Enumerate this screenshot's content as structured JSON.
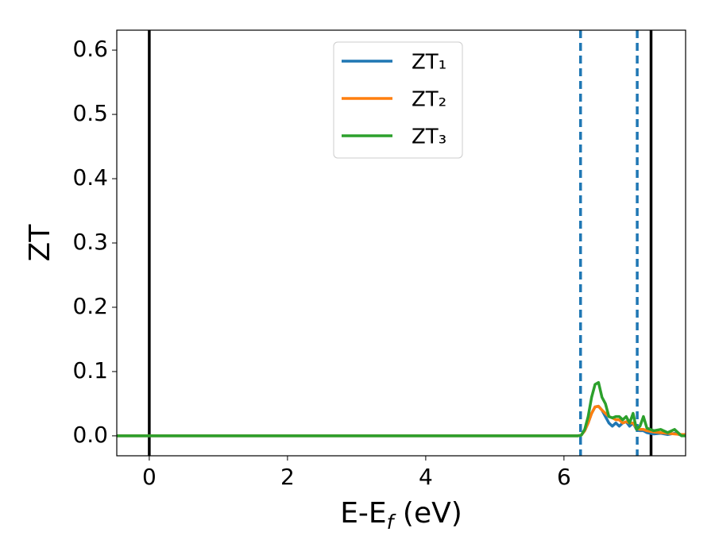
{
  "chart_data": {
    "type": "line",
    "x_label": [
      "E-E",
      "f",
      " (eV)"
    ],
    "y_label": "ZT",
    "x": [
      -0.47,
      6.2,
      6.25,
      6.3,
      6.35,
      6.4,
      6.45,
      6.5,
      6.55,
      6.6,
      6.65,
      6.7,
      6.75,
      6.8,
      6.85,
      6.9,
      6.95,
      7.0,
      7.05,
      7.1,
      7.15,
      7.2,
      7.3,
      7.4,
      7.5,
      7.6,
      7.7,
      7.76
    ],
    "series": [
      {
        "name": "ZT₁",
        "color": "#1f77b4",
        "values": [
          0,
          0,
          0.001,
          0.008,
          0.02,
          0.035,
          0.045,
          0.046,
          0.04,
          0.03,
          0.02,
          0.015,
          0.02,
          0.015,
          0.02,
          0.022,
          0.015,
          0.02,
          0.01,
          0.008,
          0.008,
          0.005,
          0.003,
          0.004,
          0.002,
          0.004,
          0.001,
          0.001
        ]
      },
      {
        "name": "ZT₂",
        "color": "#ff7f0e",
        "values": [
          0,
          0,
          0.001,
          0.008,
          0.02,
          0.035,
          0.045,
          0.046,
          0.04,
          0.035,
          0.03,
          0.028,
          0.025,
          0.025,
          0.02,
          0.022,
          0.02,
          0.02,
          0.012,
          0.01,
          0.01,
          0.008,
          0.006,
          0.005,
          0.004,
          0.003,
          0.002,
          0.002
        ]
      },
      {
        "name": "ZT₃",
        "color": "#2ca02c",
        "values": [
          0,
          0,
          0.001,
          0.01,
          0.03,
          0.06,
          0.08,
          0.083,
          0.06,
          0.05,
          0.03,
          0.028,
          0.03,
          0.03,
          0.025,
          0.03,
          0.02,
          0.035,
          0.01,
          0.015,
          0.03,
          0.012,
          0.008,
          0.01,
          0.005,
          0.01,
          0,
          0
        ]
      }
    ],
    "vlines": [
      {
        "x": 0,
        "color": "#000000",
        "dashed": false
      },
      {
        "x": 7.26,
        "color": "#000000",
        "dashed": false
      },
      {
        "x": 6.24,
        "color": "#1f77b4",
        "dashed": true
      },
      {
        "x": 7.06,
        "color": "#1f77b4",
        "dashed": true
      }
    ],
    "xlim": [
      -0.47,
      7.76
    ],
    "xticks": [
      0,
      2,
      4,
      6
    ],
    "ylim": [
      -0.031,
      0.631
    ],
    "yticks": [
      {
        "value": 0,
        "label": "0.0"
      },
      0.1,
      0.2,
      0.3,
      0.4,
      0.5,
      0.6
    ],
    "legend": "upper center"
  }
}
